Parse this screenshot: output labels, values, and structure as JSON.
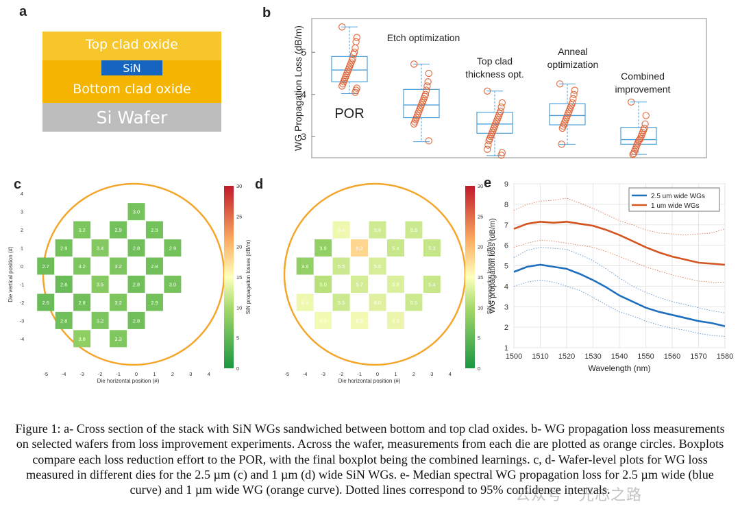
{
  "panel_labels": {
    "a": "a",
    "b": "b",
    "c": "c",
    "d": "d",
    "e": "e"
  },
  "cross_section": {
    "layers": [
      "Top clad oxide",
      "SiN",
      "Bottom clad oxide",
      "Si Wafer"
    ],
    "colors": {
      "oxide": "#f7c62b",
      "oxide_bottom": "#f5b400",
      "sin": "#1565c0",
      "wafer": "#bdbdbd"
    }
  },
  "chart_data": [
    {
      "id": "b",
      "type": "box",
      "ylabel": "WG Propagation Loss (dB/m)",
      "ylim": [
        2.5,
        5.8
      ],
      "yticks": [
        3,
        4,
        5
      ],
      "categories": [
        "POR",
        "Etch optimization",
        "Top clad thickness opt.",
        "Anneal optimization",
        "Combined improvement"
      ],
      "annotation_lines": [
        [
          "POR"
        ],
        [
          "Etch optimization"
        ],
        [
          "Top clad",
          "thickness opt."
        ],
        [
          "Anneal",
          "optimization"
        ],
        [
          "Combined",
          "improvement"
        ]
      ],
      "boxes": [
        {
          "min": 4.02,
          "q1": 4.3,
          "median": 4.58,
          "q3": 4.9,
          "max": 5.6
        },
        {
          "min": 2.88,
          "q1": 3.45,
          "median": 3.75,
          "q3": 4.12,
          "max": 4.72
        },
        {
          "min": 2.55,
          "q1": 3.08,
          "median": 3.3,
          "q3": 3.58,
          "max": 4.08
        },
        {
          "min": 2.82,
          "q1": 3.28,
          "median": 3.5,
          "q3": 3.78,
          "max": 4.25
        },
        {
          "min": 2.58,
          "q1": 2.82,
          "median": 2.93,
          "q3": 3.22,
          "max": 3.82
        }
      ],
      "points": [
        [
          5.6,
          5.35,
          5.25,
          5.1,
          5.0,
          4.95,
          4.85,
          4.8,
          4.75,
          4.7,
          4.65,
          4.6,
          4.55,
          4.5,
          4.45,
          4.4,
          4.35,
          4.3,
          4.25,
          4.2,
          4.15,
          4.1,
          4.05
        ],
        [
          4.72,
          4.5,
          4.3,
          4.2,
          4.1,
          4.0,
          3.95,
          3.9,
          3.85,
          3.8,
          3.75,
          3.7,
          3.65,
          3.6,
          3.55,
          3.5,
          3.45,
          3.4,
          3.35,
          3.3,
          2.9
        ],
        [
          4.08,
          3.8,
          3.7,
          3.6,
          3.55,
          3.5,
          3.45,
          3.4,
          3.35,
          3.3,
          3.25,
          3.2,
          3.15,
          3.1,
          3.05,
          3.0,
          2.95,
          2.9,
          2.8,
          2.7,
          2.62,
          2.56
        ],
        [
          4.25,
          4.1,
          4.0,
          3.9,
          3.8,
          3.75,
          3.7,
          3.65,
          3.6,
          3.55,
          3.5,
          3.45,
          3.4,
          3.35,
          3.3,
          3.25,
          3.2,
          2.82
        ],
        [
          3.82,
          3.5,
          3.3,
          3.2,
          3.15,
          3.1,
          3.05,
          3.0,
          2.95,
          2.92,
          2.9,
          2.85,
          2.8,
          2.75,
          2.7,
          2.65,
          2.6,
          2.58
        ]
      ],
      "colors": {
        "box": "#4a9fd8",
        "point": "#e0663a",
        "median": "#4a9fd8"
      }
    },
    {
      "id": "c",
      "type": "wafer_map",
      "xlabel": "Die horizontal position (#)",
      "ylabel": "Die vertical position (#)",
      "colorbar_label": "SiN propagation losses (dB/m)",
      "colorbar_ticks": [
        0,
        5,
        10,
        15,
        20,
        25,
        30
      ],
      "xticks": [
        -5,
        -4,
        -3,
        -2,
        -1,
        0,
        1,
        2,
        3,
        4
      ],
      "yticks": [
        4,
        3,
        2,
        1,
        0,
        -1,
        -2,
        -3,
        -4
      ],
      "dies": [
        {
          "x": 0,
          "y": 3,
          "v": 3.0
        },
        {
          "x": -3,
          "y": 2,
          "v": 3.2
        },
        {
          "x": -1,
          "y": 2,
          "v": 2.9
        },
        {
          "x": 1,
          "y": 2,
          "v": 2.9
        },
        {
          "x": -4,
          "y": 1,
          "v": 2.9
        },
        {
          "x": -2,
          "y": 1,
          "v": 3.4
        },
        {
          "x": 0,
          "y": 1,
          "v": 2.8
        },
        {
          "x": 2,
          "y": 1,
          "v": 2.9
        },
        {
          "x": -5,
          "y": 0,
          "v": 2.7
        },
        {
          "x": -3,
          "y": 0,
          "v": 3.2
        },
        {
          "x": -1,
          "y": 0,
          "v": 3.2
        },
        {
          "x": 1,
          "y": 0,
          "v": 2.8
        },
        {
          "x": -4,
          "y": -1,
          "v": 2.6
        },
        {
          "x": -2,
          "y": -1,
          "v": 3.5
        },
        {
          "x": 0,
          "y": -1,
          "v": 2.8
        },
        {
          "x": 2,
          "y": -1,
          "v": 3.0
        },
        {
          "x": -5,
          "y": -2,
          "v": 2.6
        },
        {
          "x": -3,
          "y": -2,
          "v": 2.8
        },
        {
          "x": -1,
          "y": -2,
          "v": 3.2
        },
        {
          "x": 1,
          "y": -2,
          "v": 2.9
        },
        {
          "x": -4,
          "y": -3,
          "v": 2.8
        },
        {
          "x": -2,
          "y": -3,
          "v": 3.2
        },
        {
          "x": 0,
          "y": -3,
          "v": 2.8
        },
        {
          "x": -3,
          "y": -4,
          "v": 3.8
        },
        {
          "x": -1,
          "y": -4,
          "v": 3.3
        }
      ]
    },
    {
      "id": "d",
      "type": "wafer_map",
      "xlabel": "Die horizontal position (#)",
      "ylabel": "",
      "colorbar_label": "SiN propagation losses (dB/m)",
      "colorbar_ticks": [
        0,
        5,
        10,
        15,
        20,
        25,
        30
      ],
      "xticks": [
        -5,
        -4,
        -3,
        -2,
        -1,
        0,
        1,
        2,
        3,
        4
      ],
      "dies": [
        {
          "x": -2,
          "y": 2,
          "v": 6.4
        },
        {
          "x": 0,
          "y": 2,
          "v": 5.6
        },
        {
          "x": 2,
          "y": 2,
          "v": 5.5
        },
        {
          "x": -3,
          "y": 1,
          "v": 3.9
        },
        {
          "x": -1,
          "y": 1,
          "v": 8.2
        },
        {
          "x": 1,
          "y": 1,
          "v": 5.4
        },
        {
          "x": 3,
          "y": 1,
          "v": 5.3
        },
        {
          "x": -4,
          "y": 0,
          "v": 3.9
        },
        {
          "x": -2,
          "y": 0,
          "v": 5.5
        },
        {
          "x": 0,
          "y": 0,
          "v": 5.8
        },
        {
          "x": -3,
          "y": -1,
          "v": 5.0
        },
        {
          "x": -1,
          "y": -1,
          "v": 5.7
        },
        {
          "x": 1,
          "y": -1,
          "v": 5.9
        },
        {
          "x": 3,
          "y": -1,
          "v": 5.4
        },
        {
          "x": -4,
          "y": -2,
          "v": 6.4
        },
        {
          "x": -2,
          "y": -2,
          "v": 5.5
        },
        {
          "x": 0,
          "y": -2,
          "v": 6.0
        },
        {
          "x": 2,
          "y": -2,
          "v": 5.5
        },
        {
          "x": -3,
          "y": -3,
          "v": 6.5
        },
        {
          "x": -1,
          "y": -3,
          "v": 6.5
        },
        {
          "x": 1,
          "y": -3,
          "v": 6.3
        }
      ]
    },
    {
      "id": "e",
      "type": "line",
      "xlabel": "Wavelength (nm)",
      "ylabel": "WG propagation loss (dB/m)",
      "xlim": [
        1500,
        1580
      ],
      "ylim": [
        1,
        9
      ],
      "xticks": [
        1500,
        1510,
        1520,
        1530,
        1540,
        1550,
        1560,
        1570,
        1580
      ],
      "yticks": [
        1,
        2,
        3,
        4,
        5,
        6,
        7,
        8,
        9
      ],
      "x": [
        1500,
        1505,
        1510,
        1515,
        1520,
        1525,
        1530,
        1535,
        1540,
        1545,
        1550,
        1555,
        1560,
        1565,
        1570,
        1575,
        1580
      ],
      "series": [
        {
          "name": "2.5 um wide WGs",
          "color": "#1f6fbf",
          "values": [
            4.7,
            4.95,
            5.05,
            4.95,
            4.85,
            4.6,
            4.3,
            3.95,
            3.55,
            3.25,
            2.95,
            2.75,
            2.6,
            2.45,
            2.3,
            2.2,
            2.05
          ],
          "ci_upper": [
            5.4,
            5.75,
            5.9,
            5.85,
            5.8,
            5.55,
            5.25,
            4.85,
            4.4,
            4.0,
            3.7,
            3.45,
            3.25,
            3.1,
            2.95,
            2.8,
            2.7
          ],
          "ci_lower": [
            4.0,
            4.2,
            4.3,
            4.2,
            4.0,
            3.8,
            3.45,
            3.1,
            2.75,
            2.55,
            2.3,
            2.1,
            1.95,
            1.85,
            1.7,
            1.6,
            1.55
          ]
        },
        {
          "name": "1 um wide WGs",
          "color": "#d4531f",
          "values": [
            6.8,
            7.05,
            7.15,
            7.1,
            7.15,
            7.05,
            6.95,
            6.75,
            6.5,
            6.2,
            5.9,
            5.65,
            5.45,
            5.3,
            5.15,
            5.1,
            5.05
          ],
          "ci_upper": [
            7.7,
            8.0,
            8.15,
            8.2,
            8.3,
            8.05,
            7.8,
            7.5,
            7.2,
            7.0,
            6.75,
            6.6,
            6.55,
            6.5,
            6.55,
            6.6,
            6.8
          ],
          "ci_lower": [
            5.9,
            6.1,
            6.25,
            6.2,
            6.1,
            6.0,
            5.9,
            5.7,
            5.45,
            5.2,
            4.95,
            4.75,
            4.55,
            4.4,
            4.25,
            4.2,
            4.2
          ]
        }
      ]
    }
  ],
  "caption": "Figure 1: a- Cross section of the stack with SiN WGs sandwiched between bottom and top clad oxides. b- WG propagation loss measurements on selected wafers from loss improvement experiments. Across the wafer, measurements from each die are plotted as orange circles. Boxplots compare each loss reduction effort to the POR, with the final boxplot being the combined learnings. c, d- Wafer-level plots for WG loss measured in different dies for the 2.5 µm (c) and 1 µm (d) wide SiN WGs. e- Median spectral WG propagation loss for 2.5 µm wide (blue curve) and 1 µm wide WG (orange curve). Dotted lines correspond to 95% confidence intervals.",
  "watermark": "公众号 · 光芯之路"
}
